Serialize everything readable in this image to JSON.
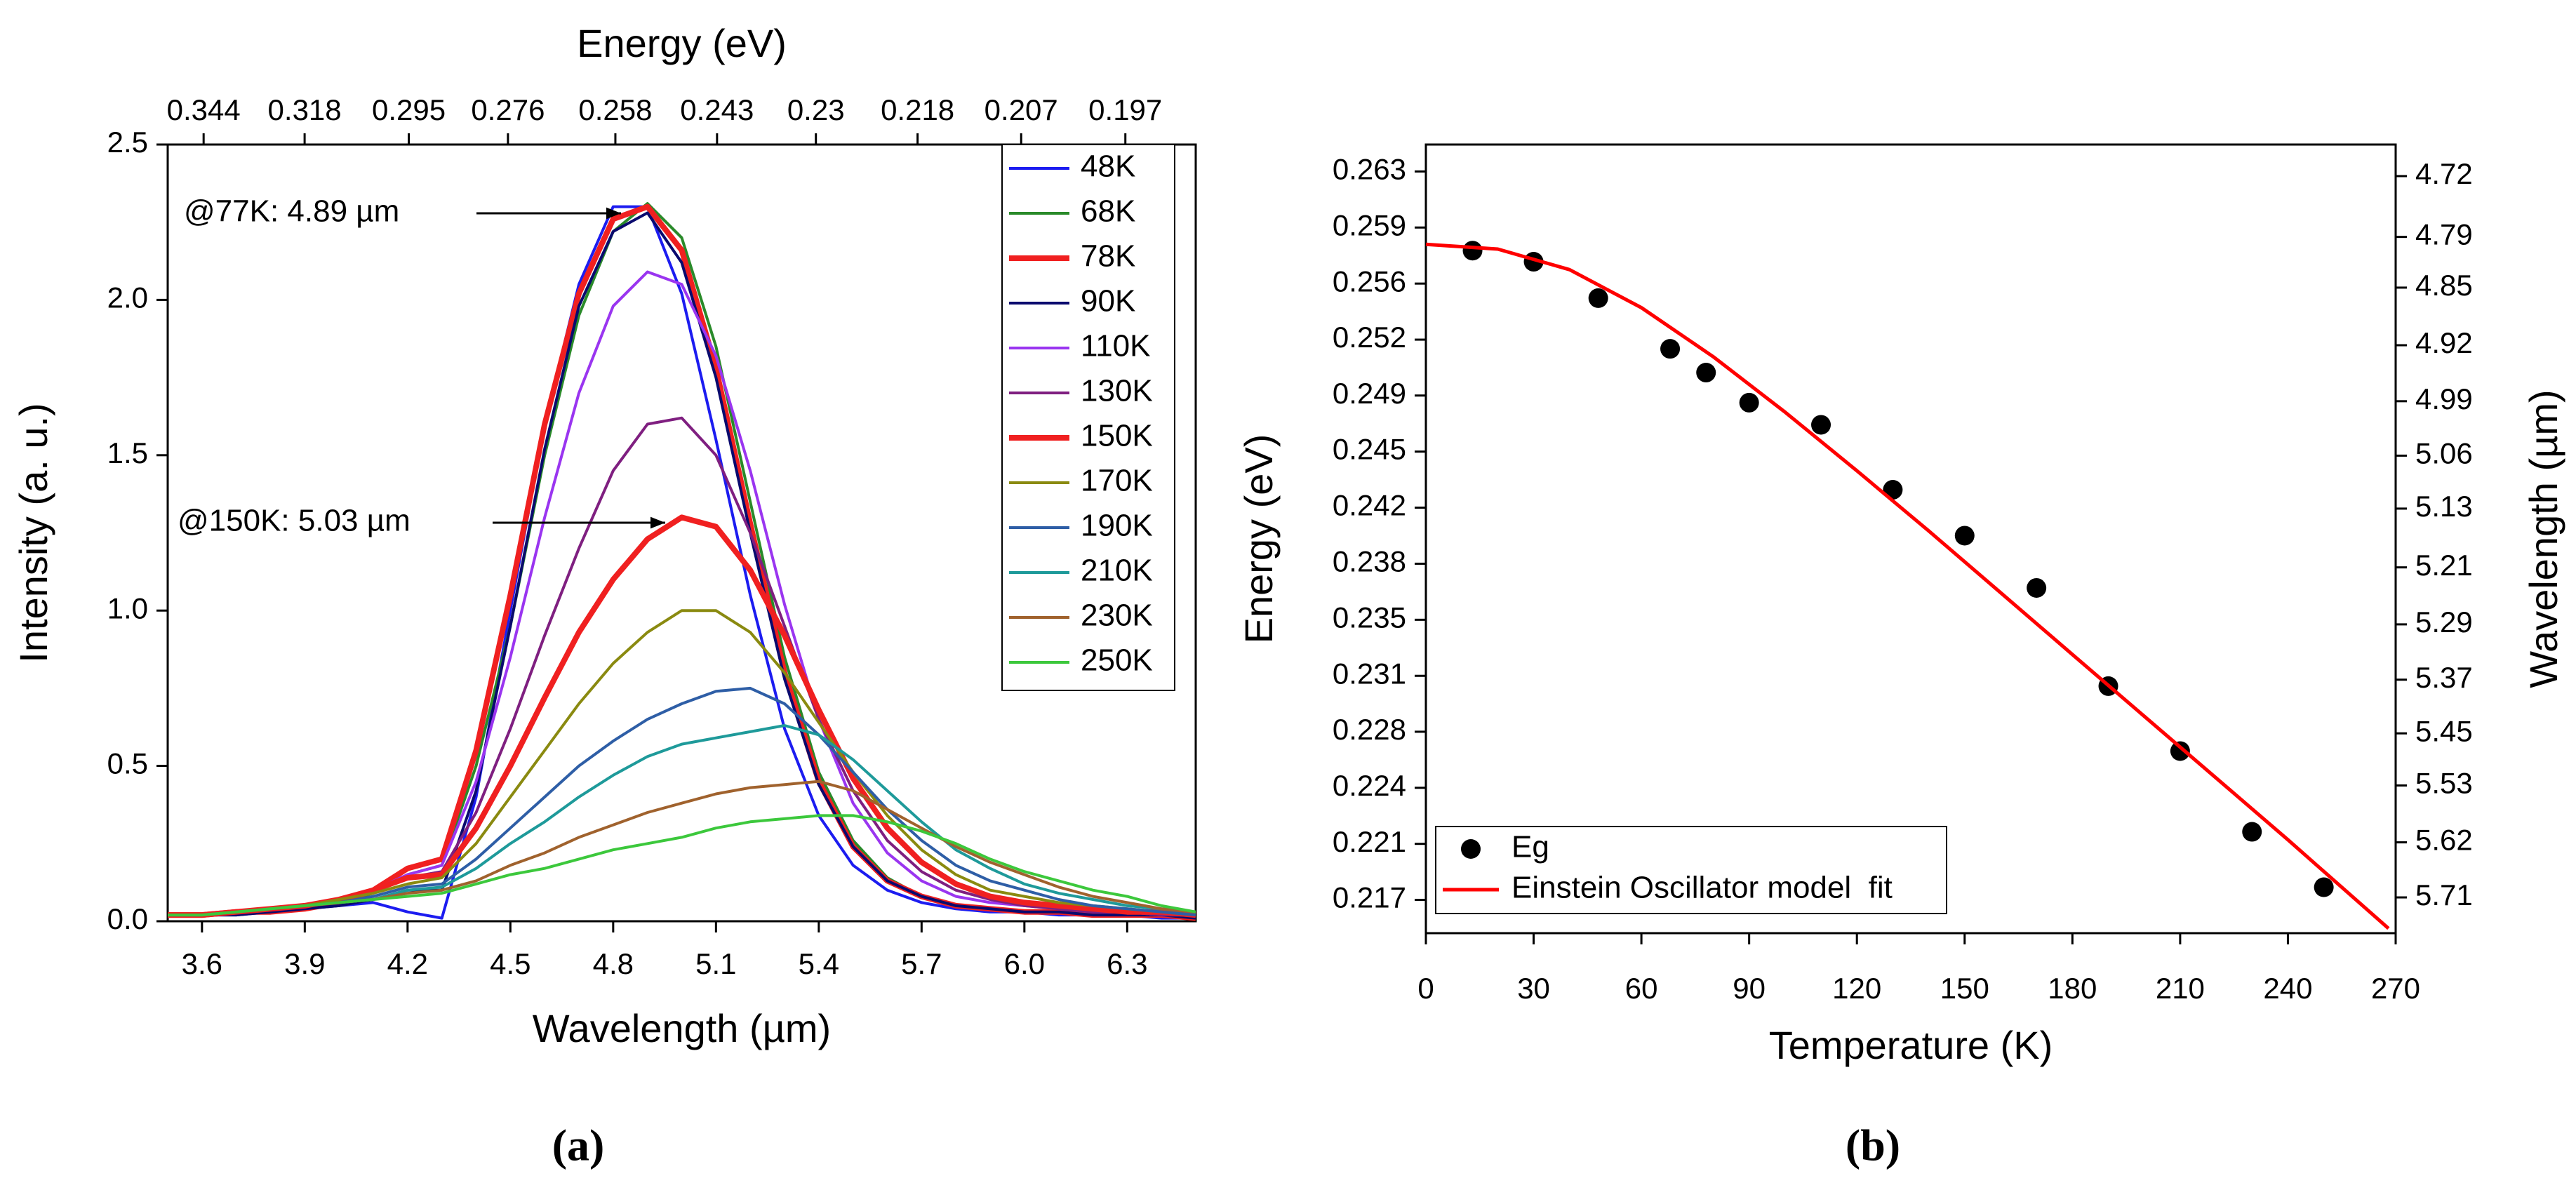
{
  "chart_data": [
    {
      "type": "line",
      "label": "(a)",
      "xlabel": "Wavelength (µm)",
      "ylabel": "Intensity (a. u.)",
      "x2label": "Energy (eV)",
      "x": [
        3.5,
        3.6,
        3.7,
        3.8,
        3.9,
        4.0,
        4.1,
        4.2,
        4.3,
        4.4,
        4.5,
        4.6,
        4.7,
        4.8,
        4.9,
        5.0,
        5.1,
        5.2,
        5.3,
        5.4,
        5.5,
        5.6,
        5.7,
        5.8,
        5.9,
        6.0,
        6.1,
        6.2,
        6.3,
        6.4,
        6.5
      ],
      "series": [
        {
          "name": "48K",
          "color": "#1c1cf0",
          "width": 1,
          "values": [
            0.02,
            0.02,
            0.02,
            0.03,
            0.04,
            0.05,
            0.06,
            0.03,
            0.01,
            0.4,
            1.0,
            1.6,
            2.05,
            2.3,
            2.3,
            2.02,
            1.55,
            1.05,
            0.62,
            0.34,
            0.18,
            0.1,
            0.06,
            0.04,
            0.03,
            0.03,
            0.02,
            0.02,
            0.02,
            0.01,
            0.01
          ]
        },
        {
          "name": "68K",
          "color": "#2a8a2a",
          "width": 1,
          "values": [
            0.02,
            0.02,
            0.03,
            0.03,
            0.04,
            0.06,
            0.09,
            0.15,
            0.18,
            0.5,
            0.95,
            1.5,
            1.95,
            2.22,
            2.31,
            2.2,
            1.85,
            1.35,
            0.85,
            0.48,
            0.26,
            0.14,
            0.08,
            0.05,
            0.04,
            0.03,
            0.03,
            0.02,
            0.02,
            0.02,
            0.01
          ]
        },
        {
          "name": "78K",
          "color": "#f02020",
          "width": 2,
          "values": [
            0.02,
            0.02,
            0.03,
            0.03,
            0.04,
            0.06,
            0.1,
            0.17,
            0.2,
            0.55,
            1.05,
            1.6,
            2.02,
            2.26,
            2.3,
            2.16,
            1.78,
            1.28,
            0.8,
            0.45,
            0.24,
            0.13,
            0.08,
            0.05,
            0.04,
            0.03,
            0.03,
            0.02,
            0.02,
            0.02,
            0.01
          ]
        },
        {
          "name": "90K",
          "color": "#0a0a6e",
          "width": 1,
          "values": [
            0.02,
            0.02,
            0.02,
            0.03,
            0.04,
            0.05,
            0.07,
            0.1,
            0.1,
            0.42,
            0.95,
            1.52,
            1.98,
            2.22,
            2.28,
            2.12,
            1.75,
            1.25,
            0.78,
            0.44,
            0.24,
            0.13,
            0.08,
            0.05,
            0.04,
            0.03,
            0.03,
            0.02,
            0.02,
            0.02,
            0.01
          ]
        },
        {
          "name": "110K",
          "color": "#9a35f0",
          "width": 1,
          "values": [
            0.02,
            0.02,
            0.03,
            0.04,
            0.05,
            0.07,
            0.1,
            0.15,
            0.18,
            0.45,
            0.85,
            1.3,
            1.7,
            1.98,
            2.09,
            2.05,
            1.82,
            1.45,
            1.02,
            0.65,
            0.38,
            0.22,
            0.13,
            0.08,
            0.06,
            0.05,
            0.04,
            0.03,
            0.03,
            0.02,
            0.02
          ]
        },
        {
          "name": "130K",
          "color": "#7f1f80",
          "width": 1,
          "values": [
            0.02,
            0.02,
            0.03,
            0.04,
            0.05,
            0.07,
            0.1,
            0.14,
            0.16,
            0.35,
            0.62,
            0.92,
            1.2,
            1.45,
            1.6,
            1.62,
            1.5,
            1.25,
            0.95,
            0.65,
            0.42,
            0.26,
            0.16,
            0.1,
            0.07,
            0.05,
            0.04,
            0.03,
            0.03,
            0.02,
            0.02
          ]
        },
        {
          "name": "150K",
          "color": "#f02020",
          "width": 2,
          "values": [
            0.02,
            0.02,
            0.03,
            0.04,
            0.05,
            0.07,
            0.1,
            0.14,
            0.15,
            0.3,
            0.5,
            0.72,
            0.93,
            1.1,
            1.23,
            1.3,
            1.27,
            1.13,
            0.92,
            0.68,
            0.46,
            0.3,
            0.19,
            0.12,
            0.08,
            0.06,
            0.05,
            0.04,
            0.03,
            0.03,
            0.02
          ]
        },
        {
          "name": "170K",
          "color": "#8a8a10",
          "width": 1,
          "values": [
            0.02,
            0.02,
            0.03,
            0.04,
            0.05,
            0.07,
            0.09,
            0.12,
            0.14,
            0.25,
            0.4,
            0.55,
            0.7,
            0.83,
            0.93,
            1.0,
            1.0,
            0.93,
            0.8,
            0.64,
            0.48,
            0.34,
            0.23,
            0.15,
            0.1,
            0.08,
            0.06,
            0.05,
            0.04,
            0.03,
            0.02
          ]
        },
        {
          "name": "190K",
          "color": "#2e5ea6",
          "width": 1,
          "values": [
            0.02,
            0.02,
            0.03,
            0.04,
            0.05,
            0.06,
            0.08,
            0.11,
            0.12,
            0.2,
            0.3,
            0.4,
            0.5,
            0.58,
            0.65,
            0.7,
            0.74,
            0.75,
            0.7,
            0.6,
            0.48,
            0.36,
            0.26,
            0.18,
            0.13,
            0.1,
            0.07,
            0.05,
            0.04,
            0.03,
            0.02
          ]
        },
        {
          "name": "210K",
          "color": "#1e9a9a",
          "width": 1,
          "values": [
            0.02,
            0.02,
            0.03,
            0.04,
            0.05,
            0.06,
            0.07,
            0.1,
            0.11,
            0.17,
            0.25,
            0.32,
            0.4,
            0.47,
            0.53,
            0.57,
            0.59,
            0.61,
            0.63,
            0.6,
            0.52,
            0.42,
            0.32,
            0.23,
            0.17,
            0.12,
            0.09,
            0.07,
            0.05,
            0.04,
            0.03
          ]
        },
        {
          "name": "230K",
          "color": "#a0622d",
          "width": 1,
          "values": [
            0.02,
            0.02,
            0.03,
            0.04,
            0.05,
            0.06,
            0.07,
            0.09,
            0.1,
            0.13,
            0.18,
            0.22,
            0.27,
            0.31,
            0.35,
            0.38,
            0.41,
            0.43,
            0.44,
            0.45,
            0.42,
            0.36,
            0.3,
            0.24,
            0.19,
            0.15,
            0.11,
            0.08,
            0.06,
            0.04,
            0.03
          ]
        },
        {
          "name": "250K",
          "color": "#3cc83c",
          "width": 1,
          "values": [
            0.02,
            0.02,
            0.03,
            0.04,
            0.05,
            0.06,
            0.07,
            0.08,
            0.09,
            0.12,
            0.15,
            0.17,
            0.2,
            0.23,
            0.25,
            0.27,
            0.3,
            0.32,
            0.33,
            0.34,
            0.34,
            0.32,
            0.29,
            0.25,
            0.2,
            0.16,
            0.13,
            0.1,
            0.08,
            0.05,
            0.03
          ]
        }
      ],
      "xlim": [
        3.5,
        6.5
      ],
      "xticks": [
        3.6,
        3.9,
        4.2,
        4.5,
        4.8,
        5.1,
        5.4,
        5.7,
        {
          "value": 6.0,
          "label": "6.0"
        },
        6.3
      ],
      "ylim": [
        0,
        2.5
      ],
      "yticks": [
        {
          "value": 0,
          "label": "0.0"
        },
        0.5,
        {
          "value": 1,
          "label": "1.0"
        },
        1.5,
        {
          "value": 2,
          "label": "2.0"
        },
        2.5
      ],
      "x2scale": "reciprocal",
      "x2lim": [
        0.3543,
        0.1908
      ],
      "x2ticks": [
        0.344,
        0.318,
        0.295,
        0.276,
        0.258,
        0.243,
        0.23,
        0.218,
        0.207,
        0.197
      ],
      "annotations": [
        {
          "text": "@77K: 4.89 µm"
        },
        {
          "text": "@150K: 5.03 µm"
        }
      ],
      "legend": "upper right"
    },
    {
      "type": "scatter",
      "label": "(b)",
      "xlabel": "Temperature (K)",
      "ylabel": "Energy (eV)",
      "y2label": "Wavelength (µm)",
      "series": [
        {
          "name": "Eg",
          "type": "scatter",
          "color": "#000000",
          "x": [
            13,
            30,
            48,
            68,
            78,
            90,
            110,
            130,
            150,
            170,
            190,
            210,
            230,
            250
          ],
          "values": [
            0.258,
            0.2573,
            0.255,
            0.2518,
            0.2503,
            0.2484,
            0.247,
            0.2429,
            0.24,
            0.2367,
            0.2305,
            0.2264,
            0.2213,
            0.2178
          ]
        },
        {
          "name": "Einstein Oscillator model  fit",
          "type": "line",
          "color": "#ff0000",
          "x": [
            0,
            20,
            40,
            60,
            80,
            100,
            120,
            140,
            160,
            180,
            200,
            220,
            240,
            250,
            268
          ],
          "values": [
            0.2584,
            0.2581,
            0.2568,
            0.2544,
            0.2513,
            0.2478,
            0.2441,
            0.2403,
            0.2364,
            0.2325,
            0.2286,
            0.2247,
            0.2208,
            0.2188,
            0.2152
          ]
        }
      ],
      "xlim": [
        0,
        270
      ],
      "xticks": [
        0,
        30,
        60,
        90,
        120,
        150,
        180,
        210,
        240,
        270
      ],
      "ylim": [
        0.2149,
        0.2647
      ],
      "yticks": [
        {
          "value": 0.217,
          "label": "0.217"
        },
        {
          "value": 0.22054,
          "label": "0.221"
        },
        {
          "value": 0.22408,
          "label": "0.224"
        },
        {
          "value": 0.22762,
          "label": "0.228"
        },
        {
          "value": 0.23115,
          "label": "0.231"
        },
        {
          "value": 0.23469,
          "label": "0.235"
        },
        {
          "value": 0.23823,
          "label": "0.238"
        },
        {
          "value": 0.24177,
          "label": "0.242"
        },
        {
          "value": 0.24531,
          "label": "0.245"
        },
        {
          "value": 0.24885,
          "label": "0.249"
        },
        {
          "value": 0.25238,
          "label": "0.252"
        },
        {
          "value": 0.25592,
          "label": "0.256"
        },
        {
          "value": 0.25946,
          "label": "0.259"
        },
        {
          "value": 0.263,
          "label": "0.263"
        }
      ],
      "y2scale": "reciprocal",
      "y2lim": [
        5.77,
        4.685
      ],
      "y2ticks": [
        5.71,
        5.62,
        5.53,
        5.45,
        5.37,
        5.29,
        5.21,
        5.13,
        5.06,
        4.99,
        4.92,
        4.85,
        4.79,
        4.72
      ],
      "legend": "lower left"
    }
  ]
}
